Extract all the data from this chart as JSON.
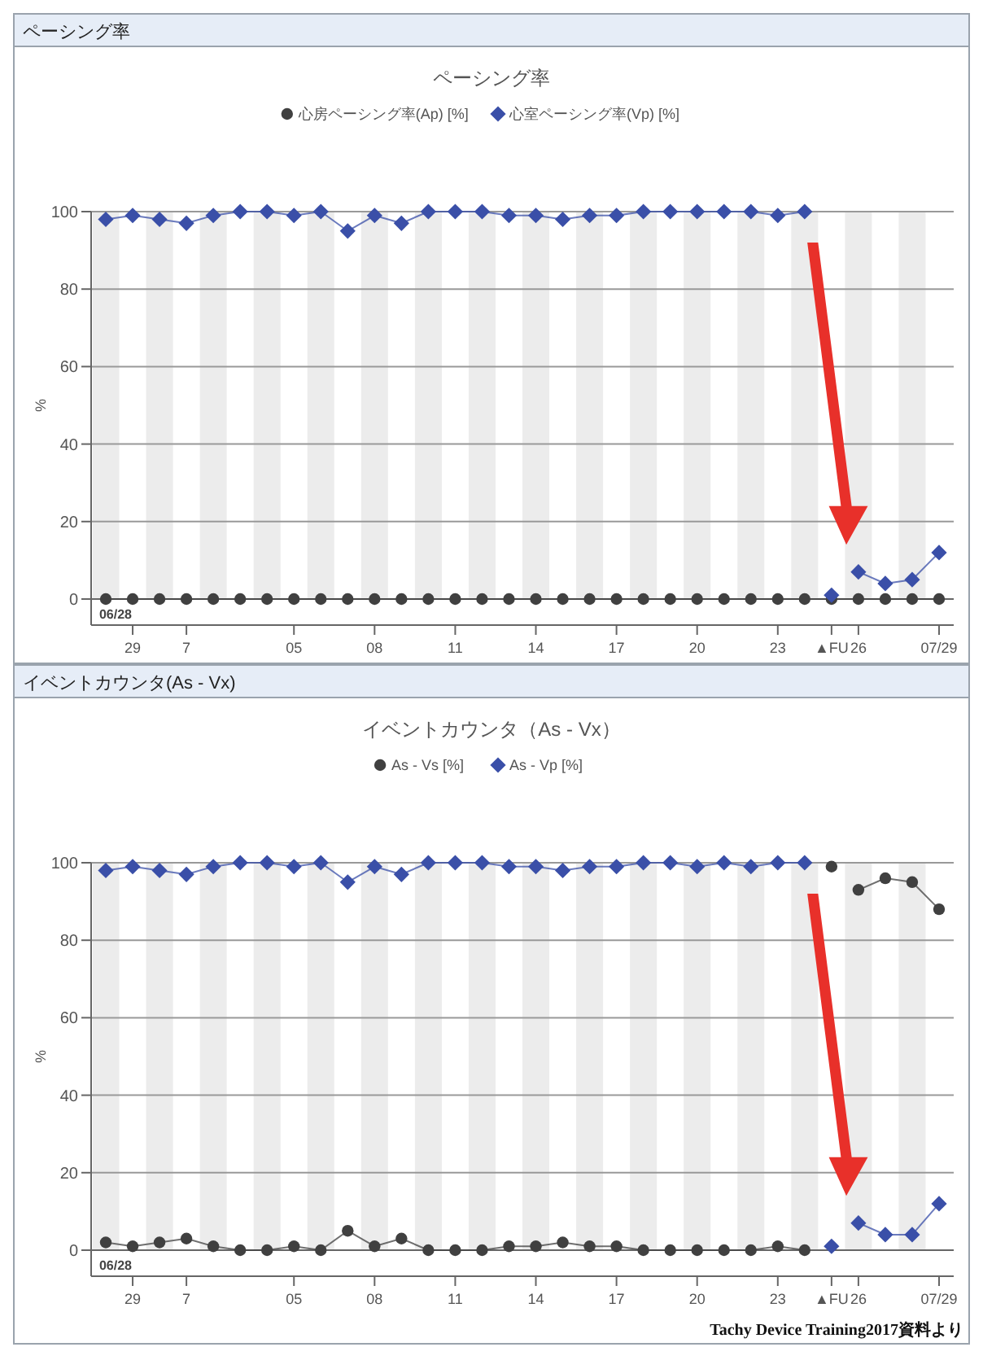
{
  "chart_data": [
    {
      "type": "line",
      "subtitle": "ペーシング率",
      "title": "ペーシング率",
      "ylabel": "%",
      "legend": "top",
      "grid": "y",
      "ylim": [
        0,
        100
      ],
      "yticks": [
        0,
        20,
        40,
        60,
        80,
        100
      ],
      "categories": [
        "06/28",
        "29",
        null,
        "7",
        null,
        null,
        null,
        "05",
        null,
        null,
        "08",
        null,
        null,
        "11",
        null,
        null,
        "14",
        null,
        null,
        "17",
        null,
        null,
        "20",
        null,
        null,
        "23",
        null,
        "▲FU",
        "26",
        null,
        null,
        "07/29"
      ],
      "series": [
        {
          "name": "心房ペーシング率(Ap) [%]",
          "color": "#404040",
          "marker": "circle",
          "values": [
            0,
            0,
            0,
            0,
            0,
            0,
            0,
            0,
            0,
            0,
            0,
            0,
            0,
            0,
            0,
            0,
            0,
            0,
            0,
            0,
            0,
            0,
            0,
            0,
            0,
            0,
            0,
            0,
            0,
            0,
            0,
            0
          ]
        },
        {
          "name": "心室ペーシング率(Vp) [%]",
          "color": "#3a4fa8",
          "marker": "diamond",
          "values": [
            98,
            99,
            98,
            97,
            99,
            100,
            100,
            99,
            100,
            95,
            99,
            97,
            100,
            100,
            100,
            99,
            99,
            98,
            99,
            99,
            100,
            100,
            100,
            100,
            100,
            99,
            100,
            null,
            null,
            null,
            null,
            null
          ]
        },
        {
          "color": "#3a4fa8",
          "marker": "diamond",
          "values": [
            null,
            null,
            null,
            null,
            null,
            null,
            null,
            null,
            null,
            null,
            null,
            null,
            null,
            null,
            null,
            null,
            null,
            null,
            null,
            null,
            null,
            null,
            null,
            null,
            null,
            null,
            null,
            1,
            null,
            null,
            null,
            null
          ]
        },
        {
          "color": "#3a4fa8",
          "marker": "diamond",
          "values": [
            null,
            null,
            null,
            null,
            null,
            null,
            null,
            null,
            null,
            null,
            null,
            null,
            null,
            null,
            null,
            null,
            null,
            null,
            null,
            null,
            null,
            null,
            null,
            null,
            null,
            null,
            null,
            null,
            7,
            4,
            5,
            12
          ]
        }
      ]
    },
    {
      "type": "line",
      "subtitle": "イベントカウンタ(As - Vx)",
      "title": "イベントカウンタ（As - Vx）",
      "ylabel": "%",
      "legend": "top",
      "grid": "y",
      "ylim": [
        0,
        100
      ],
      "yticks": [
        0,
        20,
        40,
        60,
        80,
        100
      ],
      "categories": [
        "06/28",
        "29",
        null,
        "7",
        null,
        null,
        null,
        "05",
        null,
        null,
        "08",
        null,
        null,
        "11",
        null,
        null,
        "14",
        null,
        null,
        "17",
        null,
        null,
        "20",
        null,
        null,
        "23",
        null,
        "▲FU",
        "26",
        null,
        null,
        "07/29"
      ],
      "annotations": [
        "Tachy Device Training2017資料より"
      ],
      "series": [
        {
          "name": "As - Vs [%]",
          "color": "#404040",
          "marker": "circle",
          "values": [
            2,
            1,
            2,
            3,
            1,
            0,
            0,
            1,
            0,
            5,
            1,
            3,
            0,
            0,
            0,
            1,
            1,
            2,
            1,
            1,
            0,
            0,
            0,
            0,
            0,
            1,
            0,
            null,
            null,
            null,
            null,
            null
          ]
        },
        {
          "color": "#404040",
          "marker": "circle",
          "values": [
            null,
            null,
            null,
            null,
            null,
            null,
            null,
            null,
            null,
            null,
            null,
            null,
            null,
            null,
            null,
            null,
            null,
            null,
            null,
            null,
            null,
            null,
            null,
            null,
            null,
            null,
            null,
            99,
            null,
            null,
            null,
            null
          ]
        },
        {
          "color": "#404040",
          "marker": "circle",
          "values": [
            null,
            null,
            null,
            null,
            null,
            null,
            null,
            null,
            null,
            null,
            null,
            null,
            null,
            null,
            null,
            null,
            null,
            null,
            null,
            null,
            null,
            null,
            null,
            null,
            null,
            null,
            null,
            null,
            93,
            96,
            95,
            88
          ]
        },
        {
          "name": "As - Vp [%]",
          "color": "#3a4fa8",
          "marker": "diamond",
          "values": [
            98,
            99,
            98,
            97,
            99,
            100,
            100,
            99,
            100,
            95,
            99,
            97,
            100,
            100,
            100,
            99,
            99,
            98,
            99,
            99,
            100,
            100,
            99,
            100,
            99,
            100,
            100,
            null,
            null,
            null,
            null,
            null
          ]
        },
        {
          "color": "#3a4fa8",
          "marker": "diamond",
          "values": [
            null,
            null,
            null,
            null,
            null,
            null,
            null,
            null,
            null,
            null,
            null,
            null,
            null,
            null,
            null,
            null,
            null,
            null,
            null,
            null,
            null,
            null,
            null,
            null,
            null,
            null,
            null,
            1,
            null,
            null,
            null,
            null
          ]
        },
        {
          "color": "#3a4fa8",
          "marker": "diamond",
          "values": [
            null,
            null,
            null,
            null,
            null,
            null,
            null,
            null,
            null,
            null,
            null,
            null,
            null,
            null,
            null,
            null,
            null,
            null,
            null,
            null,
            null,
            null,
            null,
            null,
            null,
            null,
            null,
            null,
            7,
            4,
            4,
            12
          ]
        }
      ]
    }
  ]
}
